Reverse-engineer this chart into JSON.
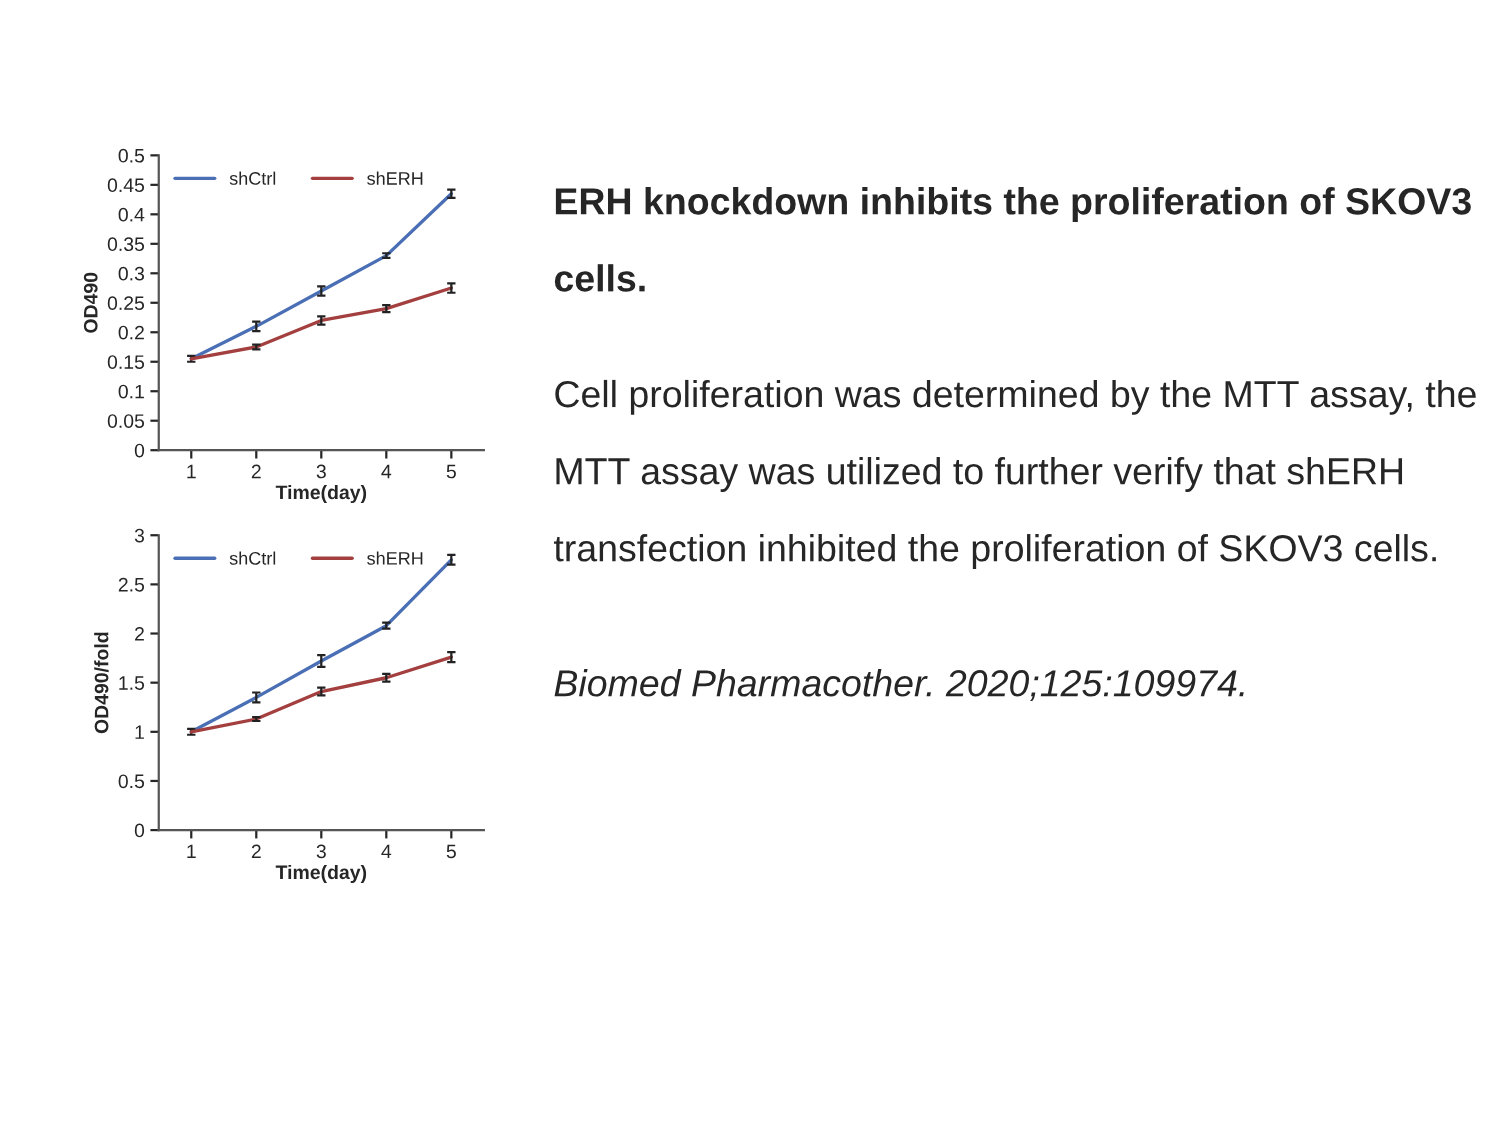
{
  "chart_data": [
    {
      "type": "line",
      "categories": [
        "1",
        "2",
        "3",
        "4",
        "5"
      ],
      "xlabel": "Time(day)",
      "ylabel": "OD490",
      "ylim": [
        0,
        0.5
      ],
      "yticks": [
        0,
        0.05,
        0.1,
        0.15,
        0.2,
        0.25,
        0.3,
        0.35,
        0.4,
        0.45,
        0.5
      ],
      "legend": "top left",
      "grid": false,
      "marker": "none",
      "line_style": "solid",
      "series": [
        {
          "name": "shCtrl",
          "color": "#4a6fb5",
          "values": [
            0.155,
            0.21,
            0.27,
            0.33,
            0.435
          ],
          "errors": [
            0.005,
            0.008,
            0.008,
            0.004,
            0.007
          ]
        },
        {
          "name": "shERH",
          "color": "#a3403f",
          "values": [
            0.155,
            0.175,
            0.22,
            0.24,
            0.275
          ],
          "errors": [
            null,
            0.004,
            0.007,
            0.006,
            0.008
          ]
        }
      ]
    },
    {
      "type": "line",
      "categories": [
        "1",
        "2",
        "3",
        "4",
        "5"
      ],
      "xlabel": "Time(day)",
      "ylabel": "OD490/fold",
      "ylim": [
        0,
        3
      ],
      "yticks": [
        0,
        0.5,
        1,
        1.5,
        2,
        2.5,
        3
      ],
      "legend": "top left",
      "grid": false,
      "marker": "none",
      "line_style": "solid",
      "series": [
        {
          "name": "shCtrl",
          "color": "#4a6fb5",
          "values": [
            1.0,
            1.35,
            1.72,
            2.08,
            2.75
          ],
          "errors": [
            0.03,
            0.05,
            0.06,
            0.03,
            0.05
          ]
        },
        {
          "name": "shERH",
          "color": "#a3403f",
          "values": [
            1.0,
            1.13,
            1.41,
            1.55,
            1.76
          ],
          "errors": [
            null,
            0.02,
            0.04,
            0.04,
            0.05
          ]
        }
      ]
    },
    {
      "type": "other",
      "title": "ERH knockdown inhibits the proliferation of SKOV3 cells.",
      "annotations": [
        "Cell proliferation was determined by the MTT assay, the MTT assay was utilized to further verify that shERH transfection inhibited the proliferation of SKOV3 cells.",
        "Biomed Pharmacother. 2020;125:109974."
      ]
    }
  ]
}
